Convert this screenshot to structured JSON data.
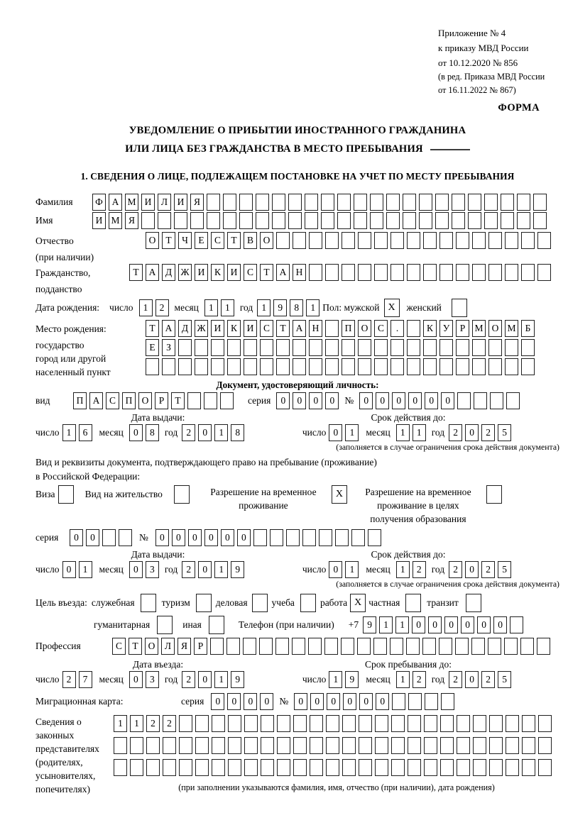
{
  "header": {
    "line1": "Приложение № 4",
    "line2": "к приказу МВД России",
    "line3": "от 10.12.2020 № 856",
    "line4": "(в ред. Приказа МВД России",
    "line5": "от 16.11.2022 № 867)",
    "form_label": "ФОРМА"
  },
  "title": {
    "line1": "УВЕДОМЛЕНИЕ О ПРИБЫТИИ ИНОСТРАННОГО ГРАЖДАНИНА",
    "line2": "ИЛИ ЛИЦА БЕЗ ГРАЖДАНСТВА В МЕСТО ПРЕБЫВАНИЯ"
  },
  "section1_heading": "1. СВЕДЕНИЯ О ЛИЦЕ, ПОДЛЕЖАЩЕМ ПОСТАНОВКЕ НА УЧЕТ ПО МЕСТУ ПРЕБЫВАНИЯ",
  "labels": {
    "day": "число",
    "month": "месяц",
    "year": "год",
    "series": "серия",
    "number": "№"
  },
  "person": {
    "surname": {
      "label": "Фамилия",
      "value": "ФАМИЛИЯ"
    },
    "firstname": {
      "label": "Имя",
      "value": "ИМЯ"
    },
    "patronymic": {
      "label": "Отчество",
      "label2": "(при наличии)",
      "value": "ОТЧЕСТВО"
    },
    "citizenship": {
      "label": "Гражданство,",
      "label2": "подданство",
      "value": "ТАДЖИКИСТАН"
    },
    "birth_date": {
      "label": "Дата рождения:",
      "day": "12",
      "month": "11",
      "year": "1981"
    },
    "sex": {
      "label": "Пол: мужской",
      "male_checked": "X",
      "female_label": "женский",
      "female_checked": ""
    },
    "birth_place": {
      "label": "Место рождения:",
      "sub1": "государство",
      "sub2": "город или другой",
      "sub3": "населенный пункт",
      "row1": "ТАДЖИКИСТАН ПОС. КУРМОМБ",
      "row2": "ЕЗ",
      "row3": ""
    }
  },
  "id_doc": {
    "heading": "Документ, удостоверяющий личность:",
    "type_label": "вид",
    "type_value": "ПАСПОРТ",
    "series_value": "0000",
    "number_value": "000000",
    "issue_heading": "Дата выдачи:",
    "issue": {
      "day": "16",
      "month": "08",
      "year": "2018"
    },
    "expiry_heading": "Срок действия до:",
    "expiry": {
      "day": "01",
      "month": "11",
      "year": "2025"
    },
    "note": "(заполняется в случае ограничения срока действия документа)"
  },
  "residence_doc": {
    "intro1": "Вид и реквизиты документа, подтверждающего право на пребывание (проживание)",
    "intro2": "в Российской Федерации:",
    "visa_label": "Виза",
    "visa_checked": "",
    "permit_label": "Вид на жительство",
    "permit_checked": "",
    "temp_line1": "Разрешение на временное",
    "temp_line2": "проживание",
    "temp_checked": "X",
    "edu_line1": "Разрешение на временное",
    "edu_line2": "проживание в целях",
    "edu_line3": "получения образования",
    "edu_checked": "",
    "series_value": "00",
    "number_value": "000000",
    "issue_heading": "Дата выдачи:",
    "issue": {
      "day": "01",
      "month": "03",
      "year": "2019"
    },
    "expiry_heading": "Срок действия до:",
    "expiry": {
      "day": "01",
      "month": "12",
      "year": "2025"
    },
    "note": "(заполняется в случае ограничения срока действия документа)"
  },
  "visit": {
    "purpose_prefix": "Цель въезда:",
    "purposes": [
      {
        "label": "служебная",
        "checked": ""
      },
      {
        "label": "туризм",
        "checked": ""
      },
      {
        "label": "деловая",
        "checked": ""
      },
      {
        "label": "учеба",
        "checked": ""
      },
      {
        "label": "работа",
        "checked": "X"
      },
      {
        "label": "частная",
        "checked": ""
      },
      {
        "label": "транзит",
        "checked": ""
      },
      {
        "label": "гуманитарная",
        "checked": ""
      },
      {
        "label": "иная",
        "checked": ""
      }
    ],
    "phone_label": "Телефон (при наличии)",
    "phone_prefix": "+7",
    "phone_value": "911000000",
    "profession_label": "Профессия",
    "profession_value": "СТОЛЯР",
    "entry_heading": "Дата въезда:",
    "entry": {
      "day": "27",
      "month": "03",
      "year": "2019"
    },
    "stay_heading": "Срок пребывания до:",
    "stay": {
      "day": "19",
      "month": "12",
      "year": "2025"
    },
    "migration_card_label": "Миграционная карта:",
    "migration_series": "0000",
    "migration_number": "000000"
  },
  "representatives": {
    "l1": "Сведения о",
    "l2": "законных",
    "l3": "представителях",
    "l4": "(родителях,",
    "l5": "усыновителях,",
    "l6": "попечителях)",
    "row1": "1122",
    "row2": "",
    "row3": "",
    "note": "(при заполнении указываются фамилия, имя, отчество (при наличии), дата рождения)"
  }
}
